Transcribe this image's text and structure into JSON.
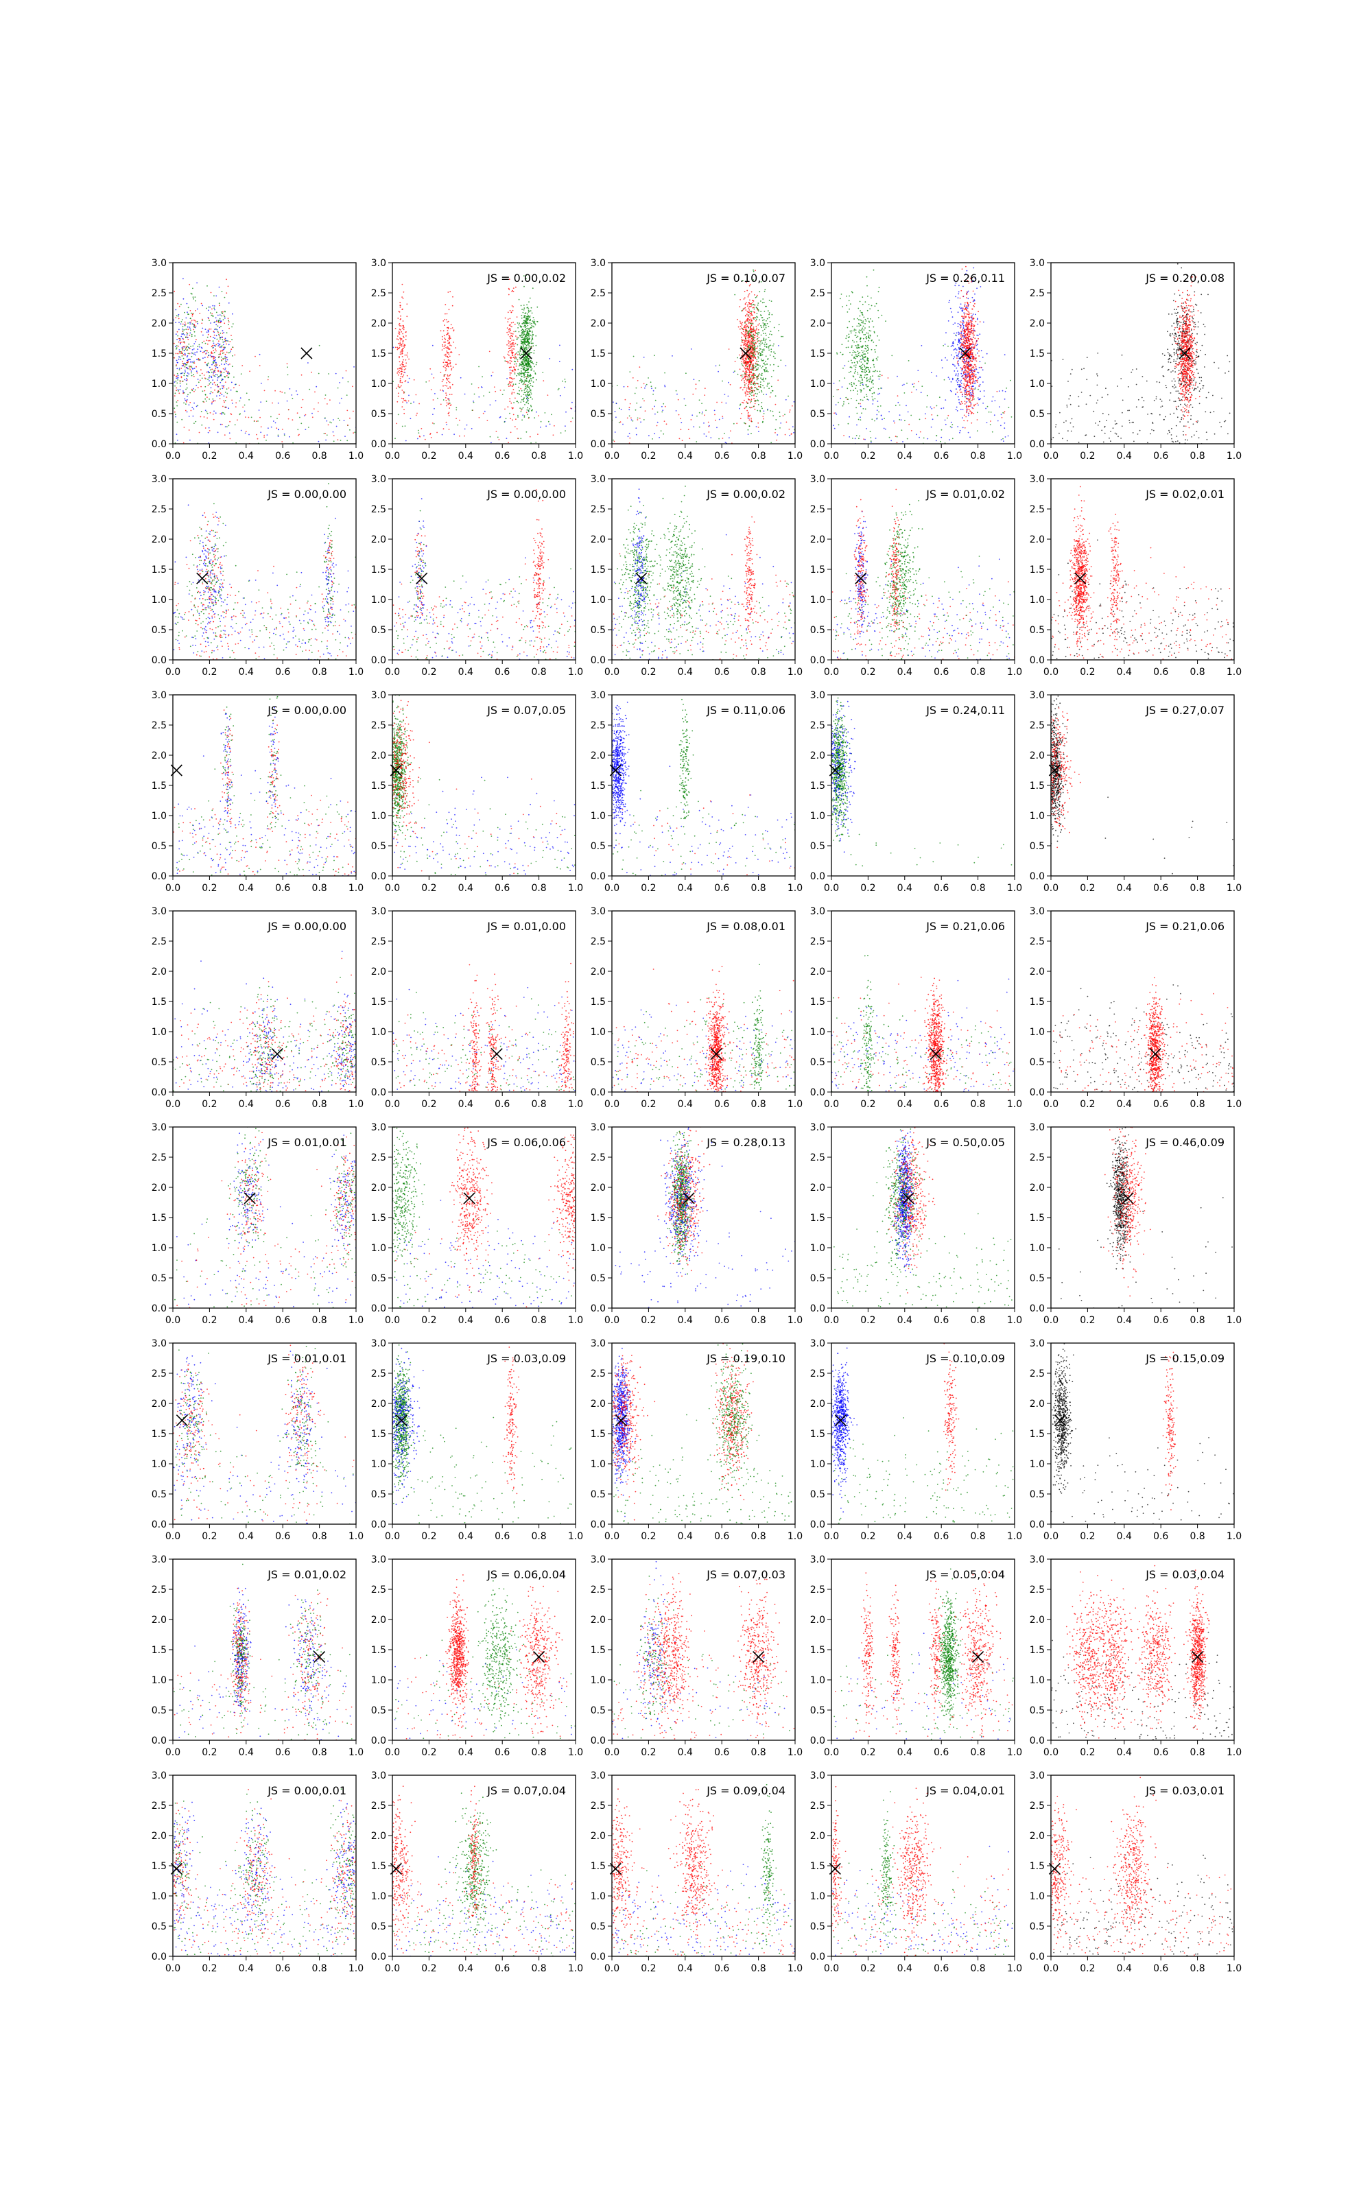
{
  "chart_data": {
    "type": "scatter",
    "layout": {
      "rows": 8,
      "cols": 5
    },
    "xlim": [
      0.0,
      1.0
    ],
    "ylim": [
      0.0,
      3.0
    ],
    "xticks": [
      "0.0",
      "0.2",
      "0.4",
      "0.6",
      "0.8",
      "1.0"
    ],
    "yticks": [
      "0.0",
      "0.5",
      "1.0",
      "1.5",
      "2.0",
      "2.5",
      "3.0"
    ],
    "grid": false,
    "colors": {
      "blue": "#0000ff",
      "green": "#008000",
      "red": "#ff0000",
      "black": "#000000",
      "marker": "#000000"
    },
    "panels": [
      {
        "row": 0,
        "col": 0,
        "js": "",
        "marker": [
          0.73,
          1.5
        ],
        "clusters": [
          {
            "x": 0.07,
            "c": "mix"
          },
          {
            "x": 0.25,
            "c": "mix"
          }
        ],
        "bg": {
          "c": "mix",
          "d": 0.6
        }
      },
      {
        "row": 0,
        "col": 1,
        "js": "JS = 0.00,0.02",
        "marker": [
          0.73,
          1.5
        ],
        "clusters": [
          {
            "x": 0.73,
            "c": "green",
            "big": 1
          },
          {
            "x": 0.05,
            "c": "red",
            "small": 1
          },
          {
            "x": 0.3,
            "c": "red",
            "small": 1
          },
          {
            "x": 0.65,
            "c": "red",
            "small": 1
          }
        ],
        "bg": {
          "c": "mix",
          "d": 0.5
        }
      },
      {
        "row": 0,
        "col": 2,
        "js": "JS = 0.10,0.07",
        "marker": [
          0.73,
          1.5
        ],
        "clusters": [
          {
            "x": 0.75,
            "c": "red",
            "big": 1
          },
          {
            "x": 0.8,
            "c": "green"
          }
        ],
        "bg": {
          "c": "mix",
          "d": 0.6
        }
      },
      {
        "row": 0,
        "col": 3,
        "js": "JS = 0.26,0.11",
        "marker": [
          0.73,
          1.5
        ],
        "clusters": [
          {
            "x": 0.17,
            "c": "green"
          },
          {
            "x": 0.73,
            "c": "blue"
          },
          {
            "x": 0.75,
            "c": "red",
            "big": 1
          }
        ],
        "bg": {
          "c": "mixbg",
          "d": 0.6
        }
      },
      {
        "row": 0,
        "col": 4,
        "js": "JS = 0.20,0.08",
        "marker": [
          0.73,
          1.5
        ],
        "clusters": [
          {
            "x": 0.73,
            "c": "black"
          },
          {
            "x": 0.74,
            "c": "red",
            "big": 1
          }
        ],
        "bg": {
          "c": "black",
          "d": 0.5
        }
      },
      {
        "row": 1,
        "col": 0,
        "js": "JS = 0.00,0.00",
        "marker": [
          0.16,
          1.35
        ],
        "clusters": [
          {
            "x": 0.2,
            "c": "mix"
          },
          {
            "x": 0.85,
            "c": "mix",
            "small": 1
          }
        ],
        "bg": {
          "c": "mix",
          "d": 1
        }
      },
      {
        "row": 1,
        "col": 1,
        "js": "JS = 0.00,0.00",
        "marker": [
          0.16,
          1.35
        ],
        "clusters": [
          {
            "x": 0.15,
            "c": "mix",
            "small": 1
          },
          {
            "x": 0.8,
            "c": "red",
            "small": 1
          }
        ],
        "bg": {
          "c": "mix",
          "d": 1
        }
      },
      {
        "row": 1,
        "col": 2,
        "js": "JS = 0.00,0.02",
        "marker": [
          0.16,
          1.35
        ],
        "clusters": [
          {
            "x": 0.15,
            "c": "green"
          },
          {
            "x": 0.37,
            "c": "green"
          },
          {
            "x": 0.15,
            "c": "blue",
            "small": 1
          },
          {
            "x": 0.75,
            "c": "red",
            "small": 1
          }
        ],
        "bg": {
          "c": "mix",
          "d": 1
        }
      },
      {
        "row": 1,
        "col": 3,
        "js": "JS = 0.01,0.02",
        "marker": [
          0.16,
          1.35
        ],
        "clusters": [
          {
            "x": 0.38,
            "c": "green"
          },
          {
            "x": 0.16,
            "c": "blue",
            "small": 1
          },
          {
            "x": 0.16,
            "c": "red",
            "small": 1
          },
          {
            "x": 0.35,
            "c": "red",
            "small": 1
          }
        ],
        "bg": {
          "c": "mix",
          "d": 1
        }
      },
      {
        "row": 1,
        "col": 4,
        "js": "JS = 0.02,0.01",
        "marker": [
          0.16,
          1.35
        ],
        "clusters": [
          {
            "x": 0.16,
            "c": "red",
            "big": 1
          },
          {
            "x": 0.35,
            "c": "red",
            "small": 1
          }
        ],
        "bg": {
          "c": "redblack",
          "d": 1
        }
      },
      {
        "row": 2,
        "col": 0,
        "js": "JS = 0.00,0.00",
        "marker": [
          0.02,
          1.75
        ],
        "clusters": [
          {
            "x": 0.3,
            "c": "mix",
            "small": 1
          },
          {
            "x": 0.55,
            "c": "mix",
            "small": 1
          }
        ],
        "bg": {
          "c": "mix",
          "d": 1
        }
      },
      {
        "row": 2,
        "col": 1,
        "js": "JS = 0.07,0.05",
        "marker": [
          0.02,
          1.75
        ],
        "clusters": [
          {
            "x": 0.03,
            "c": "green",
            "big": 1
          },
          {
            "x": 0.03,
            "c": "red"
          }
        ],
        "bg": {
          "c": "mixbg",
          "d": 0.6
        }
      },
      {
        "row": 2,
        "col": 2,
        "js": "JS = 0.11,0.06",
        "marker": [
          0.02,
          1.75
        ],
        "clusters": [
          {
            "x": 0.03,
            "c": "blue",
            "big": 1
          },
          {
            "x": 0.4,
            "c": "green",
            "small": 1
          }
        ],
        "bg": {
          "c": "mixbg",
          "d": 0.5
        }
      },
      {
        "row": 2,
        "col": 3,
        "js": "JS = 0.24,0.11",
        "marker": [
          0.02,
          1.75
        ],
        "clusters": [
          {
            "x": 0.04,
            "c": "green",
            "big": 1
          },
          {
            "x": 0.02,
            "c": "blue"
          }
        ],
        "bg": {
          "c": "green",
          "d": 0.05
        }
      },
      {
        "row": 2,
        "col": 4,
        "js": "JS = 0.27,0.07",
        "marker": [
          0.02,
          1.75
        ],
        "clusters": [
          {
            "x": 0.02,
            "c": "black",
            "big": 1
          },
          {
            "x": 0.02,
            "c": "red"
          }
        ],
        "bg": {
          "c": "black",
          "d": 0.03
        }
      },
      {
        "row": 3,
        "col": 0,
        "js": "JS = 0.00,0.00",
        "marker": [
          0.57,
          0.63
        ],
        "clusters": [
          {
            "x": 0.5,
            "c": "mix"
          },
          {
            "x": 0.95,
            "c": "mix"
          }
        ],
        "bg": {
          "c": "mix",
          "d": 1
        }
      },
      {
        "row": 3,
        "col": 1,
        "js": "JS = 0.01,0.00",
        "marker": [
          0.57,
          0.63
        ],
        "clusters": [
          {
            "x": 0.45,
            "c": "red",
            "small": 1
          },
          {
            "x": 0.55,
            "c": "red",
            "small": 1
          },
          {
            "x": 0.95,
            "c": "red",
            "small": 1
          }
        ],
        "bg": {
          "c": "mix",
          "d": 1
        }
      },
      {
        "row": 3,
        "col": 2,
        "js": "JS = 0.08,0.01",
        "marker": [
          0.57,
          0.63
        ],
        "clusters": [
          {
            "x": 0.57,
            "c": "red",
            "big": 1
          },
          {
            "x": 0.8,
            "c": "green",
            "small": 1
          }
        ],
        "bg": {
          "c": "mix",
          "d": 1
        }
      },
      {
        "row": 3,
        "col": 3,
        "js": "JS = 0.21,0.06",
        "marker": [
          0.57,
          0.63
        ],
        "clusters": [
          {
            "x": 0.57,
            "c": "red",
            "big": 1
          },
          {
            "x": 0.2,
            "c": "green",
            "small": 1
          }
        ],
        "bg": {
          "c": "mix",
          "d": 1
        }
      },
      {
        "row": 3,
        "col": 4,
        "js": "JS = 0.21,0.06",
        "marker": [
          0.57,
          0.63
        ],
        "clusters": [
          {
            "x": 0.57,
            "c": "red",
            "big": 1
          }
        ],
        "bg": {
          "c": "redblack",
          "d": 1
        }
      },
      {
        "row": 4,
        "col": 0,
        "js": "JS = 0.01,0.01",
        "marker": [
          0.42,
          1.82
        ],
        "clusters": [
          {
            "x": 0.42,
            "c": "mix"
          },
          {
            "x": 0.95,
            "c": "mix"
          }
        ],
        "bg": {
          "c": "mix",
          "d": 0.5
        }
      },
      {
        "row": 4,
        "col": 1,
        "js": "JS = 0.06,0.06",
        "marker": [
          0.42,
          1.82
        ],
        "clusters": [
          {
            "x": 0.42,
            "c": "red"
          },
          {
            "x": 0.98,
            "c": "red"
          },
          {
            "x": 0.05,
            "c": "green"
          }
        ],
        "bg": {
          "c": "mixbg",
          "d": 0.6
        }
      },
      {
        "row": 4,
        "col": 2,
        "js": "JS = 0.28,0.13",
        "marker": [
          0.42,
          1.82
        ],
        "clusters": [
          {
            "x": 0.38,
            "c": "green",
            "big": 1
          },
          {
            "x": 0.38,
            "c": "blue"
          },
          {
            "x": 0.4,
            "c": "red"
          }
        ],
        "bg": {
          "c": "blue",
          "d": 0.2
        }
      },
      {
        "row": 4,
        "col": 3,
        "js": "JS = 0.50,0.05",
        "marker": [
          0.42,
          1.82
        ],
        "clusters": [
          {
            "x": 0.4,
            "c": "blue",
            "big": 1
          },
          {
            "x": 0.38,
            "c": "green"
          },
          {
            "x": 0.43,
            "c": "red"
          }
        ],
        "bg": {
          "c": "green",
          "d": 0.4
        }
      },
      {
        "row": 4,
        "col": 4,
        "js": "JS = 0.46,0.09",
        "marker": [
          0.42,
          1.82
        ],
        "clusters": [
          {
            "x": 0.38,
            "c": "black",
            "big": 1
          },
          {
            "x": 0.42,
            "c": "red"
          }
        ],
        "bg": {
          "c": "black",
          "d": 0.1
        }
      },
      {
        "row": 5,
        "col": 0,
        "js": "JS = 0.01,0.01",
        "marker": [
          0.05,
          1.72
        ],
        "clusters": [
          {
            "x": 0.1,
            "c": "mix"
          },
          {
            "x": 0.7,
            "c": "mix"
          }
        ],
        "bg": {
          "c": "mix",
          "d": 0.5
        }
      },
      {
        "row": 5,
        "col": 1,
        "js": "JS = 0.03,0.09",
        "marker": [
          0.05,
          1.72
        ],
        "clusters": [
          {
            "x": 0.05,
            "c": "green",
            "big": 1
          },
          {
            "x": 0.04,
            "c": "blue"
          },
          {
            "x": 0.65,
            "c": "red",
            "small": 1
          }
        ],
        "bg": {
          "c": "green",
          "d": 0.3
        }
      },
      {
        "row": 5,
        "col": 2,
        "js": "JS = 0.19,0.10",
        "marker": [
          0.05,
          1.72
        ],
        "clusters": [
          {
            "x": 0.05,
            "c": "blue",
            "big": 1
          },
          {
            "x": 0.07,
            "c": "red"
          },
          {
            "x": 0.66,
            "c": "red"
          },
          {
            "x": 0.66,
            "c": "green"
          }
        ],
        "bg": {
          "c": "green",
          "d": 0.4
        }
      },
      {
        "row": 5,
        "col": 3,
        "js": "JS = 0.10,0.09",
        "marker": [
          0.05,
          1.72
        ],
        "clusters": [
          {
            "x": 0.05,
            "c": "blue",
            "big": 1
          },
          {
            "x": 0.65,
            "c": "red",
            "small": 1
          }
        ],
        "bg": {
          "c": "green",
          "d": 0.4
        }
      },
      {
        "row": 5,
        "col": 4,
        "js": "JS = 0.15,0.09",
        "marker": [
          0.05,
          1.72
        ],
        "clusters": [
          {
            "x": 0.06,
            "c": "black",
            "big": 1
          },
          {
            "x": 0.65,
            "c": "red",
            "small": 1
          }
        ],
        "bg": {
          "c": "black",
          "d": 0.2
        }
      },
      {
        "row": 6,
        "col": 0,
        "js": "JS = 0.01,0.02",
        "marker": [
          0.8,
          1.38
        ],
        "clusters": [
          {
            "x": 0.37,
            "c": "mix",
            "big": 1
          },
          {
            "x": 0.75,
            "c": "mix"
          }
        ],
        "bg": {
          "c": "mix",
          "d": 0.5
        }
      },
      {
        "row": 6,
        "col": 1,
        "js": "JS = 0.06,0.04",
        "marker": [
          0.8,
          1.38
        ],
        "clusters": [
          {
            "x": 0.36,
            "c": "red",
            "big": 1
          },
          {
            "x": 0.8,
            "c": "red"
          },
          {
            "x": 0.58,
            "c": "green"
          }
        ],
        "bg": {
          "c": "mix",
          "d": 0.5
        }
      },
      {
        "row": 6,
        "col": 2,
        "js": "JS = 0.07,0.03",
        "marker": [
          0.8,
          1.38
        ],
        "clusters": [
          {
            "x": 0.23,
            "c": "mix"
          },
          {
            "x": 0.34,
            "c": "red"
          },
          {
            "x": 0.8,
            "c": "red"
          }
        ],
        "bg": {
          "c": "mix",
          "d": 0.5
        }
      },
      {
        "row": 6,
        "col": 3,
        "js": "JS = 0.05,0.04",
        "marker": [
          0.8,
          1.38
        ],
        "clusters": [
          {
            "x": 0.64,
            "c": "green",
            "big": 1
          },
          {
            "x": 0.2,
            "c": "red",
            "small": 1
          },
          {
            "x": 0.35,
            "c": "red",
            "small": 1
          },
          {
            "x": 0.57,
            "c": "red",
            "small": 1
          },
          {
            "x": 0.8,
            "c": "red"
          }
        ],
        "bg": {
          "c": "mix",
          "d": 0.5
        }
      },
      {
        "row": 6,
        "col": 4,
        "js": "JS = 0.03,0.04",
        "marker": [
          0.8,
          1.38
        ],
        "clusters": [
          {
            "x": 0.2,
            "c": "red"
          },
          {
            "x": 0.33,
            "c": "red"
          },
          {
            "x": 0.57,
            "c": "red"
          },
          {
            "x": 0.8,
            "c": "red",
            "big": 1
          }
        ],
        "bg": {
          "c": "black",
          "d": 0.5
        }
      },
      {
        "row": 7,
        "col": 0,
        "js": "JS = 0.00,0.01",
        "marker": [
          0.02,
          1.45
        ],
        "clusters": [
          {
            "x": 0.02,
            "c": "mix"
          },
          {
            "x": 0.45,
            "c": "mix"
          },
          {
            "x": 0.95,
            "c": "mix"
          }
        ],
        "bg": {
          "c": "mix",
          "d": 1
        }
      },
      {
        "row": 7,
        "col": 1,
        "js": "JS = 0.07,0.04",
        "marker": [
          0.02,
          1.45
        ],
        "clusters": [
          {
            "x": 0.02,
            "c": "red"
          },
          {
            "x": 0.45,
            "c": "green"
          },
          {
            "x": 0.45,
            "c": "red",
            "small": 1
          }
        ],
        "bg": {
          "c": "mix",
          "d": 1
        }
      },
      {
        "row": 7,
        "col": 2,
        "js": "JS = 0.09,0.04",
        "marker": [
          0.02,
          1.45
        ],
        "clusters": [
          {
            "x": 0.02,
            "c": "red"
          },
          {
            "x": 0.45,
            "c": "red"
          },
          {
            "x": 0.85,
            "c": "green",
            "small": 1
          }
        ],
        "bg": {
          "c": "mix",
          "d": 1
        }
      },
      {
        "row": 7,
        "col": 3,
        "js": "JS = 0.04,0.01",
        "marker": [
          0.02,
          1.45
        ],
        "clusters": [
          {
            "x": 0.02,
            "c": "red",
            "small": 1
          },
          {
            "x": 0.45,
            "c": "red"
          },
          {
            "x": 0.3,
            "c": "green",
            "small": 1
          }
        ],
        "bg": {
          "c": "mix",
          "d": 1
        }
      },
      {
        "row": 7,
        "col": 4,
        "js": "JS = 0.03,0.01",
        "marker": [
          0.02,
          1.45
        ],
        "clusters": [
          {
            "x": 0.02,
            "c": "red"
          },
          {
            "x": 0.45,
            "c": "red"
          }
        ],
        "bg": {
          "c": "redblack",
          "d": 1
        }
      }
    ]
  }
}
